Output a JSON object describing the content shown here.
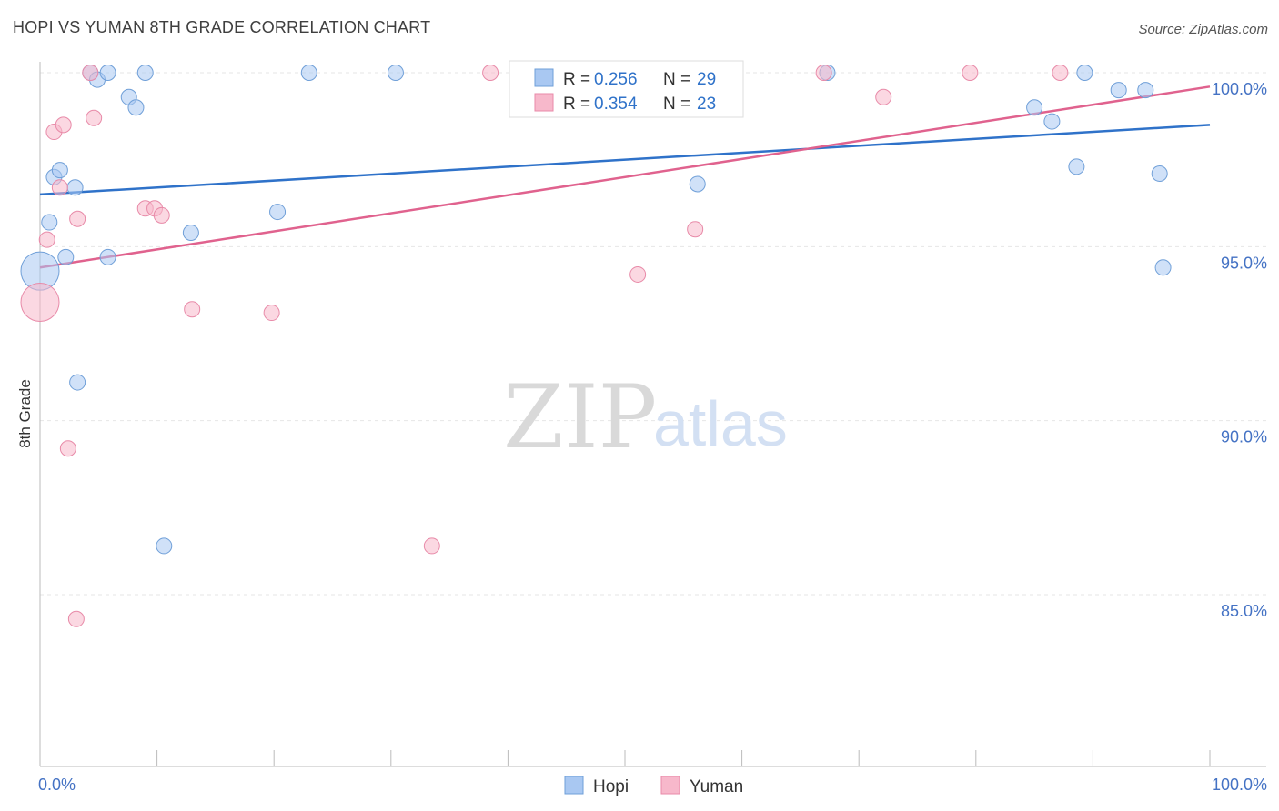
{
  "title": "HOPI VS YUMAN 8TH GRADE CORRELATION CHART",
  "source": "Source: ZipAtlas.com",
  "watermark": {
    "zip": "ZIP",
    "atlas": "atlas"
  },
  "chart_data": {
    "type": "scatter",
    "title": "HOPI VS YUMAN 8TH GRADE CORRELATION CHART",
    "xlabel": "",
    "ylabel": "8th Grade",
    "xlim": [
      0,
      100
    ],
    "ylim": [
      80.5,
      100.5
    ],
    "x_tick_labels": [
      "0.0%",
      "100.0%"
    ],
    "y_ticks": [
      100,
      95,
      90,
      85
    ],
    "y_tick_labels": [
      "100.0%",
      "95.0%",
      "90.0%",
      "85.0%"
    ],
    "grid": true,
    "legend_position": "top-center",
    "stats_legend": [
      {
        "r_label": "R = ",
        "r_value": "0.256",
        "n_label": "N = ",
        "n_value": "29",
        "color": "#a9c8f2"
      },
      {
        "r_label": "R = ",
        "r_value": "0.354",
        "n_label": "N = ",
        "n_value": "23",
        "color": "#f7b8cb"
      }
    ],
    "series": [
      {
        "name": "Hopi",
        "color": "#a9c8f2",
        "stroke": "#6f9fd8",
        "line_color": "#2f72c9",
        "trend": {
          "x": [
            0,
            100
          ],
          "y": [
            96.5,
            98.5
          ]
        },
        "points": [
          {
            "x": 0.0,
            "y": 94.3,
            "big": true
          },
          {
            "x": 0.8,
            "y": 95.7
          },
          {
            "x": 1.2,
            "y": 97.0
          },
          {
            "x": 1.7,
            "y": 97.2
          },
          {
            "x": 2.2,
            "y": 94.7
          },
          {
            "x": 3.0,
            "y": 96.7
          },
          {
            "x": 3.2,
            "y": 91.1
          },
          {
            "x": 4.3,
            "y": 100.0
          },
          {
            "x": 4.9,
            "y": 99.8
          },
          {
            "x": 5.8,
            "y": 100.0
          },
          {
            "x": 5.8,
            "y": 94.7
          },
          {
            "x": 7.6,
            "y": 99.3
          },
          {
            "x": 8.2,
            "y": 99.0
          },
          {
            "x": 9.0,
            "y": 100.0
          },
          {
            "x": 10.6,
            "y": 86.4
          },
          {
            "x": 12.9,
            "y": 95.4
          },
          {
            "x": 20.3,
            "y": 96.0
          },
          {
            "x": 23.0,
            "y": 100.0
          },
          {
            "x": 30.4,
            "y": 100.0
          },
          {
            "x": 56.2,
            "y": 96.8
          },
          {
            "x": 67.3,
            "y": 100.0
          },
          {
            "x": 85.0,
            "y": 99.0
          },
          {
            "x": 86.5,
            "y": 98.6
          },
          {
            "x": 88.6,
            "y": 97.3
          },
          {
            "x": 89.3,
            "y": 100.0
          },
          {
            "x": 92.2,
            "y": 99.5
          },
          {
            "x": 94.5,
            "y": 99.5
          },
          {
            "x": 95.7,
            "y": 97.1
          },
          {
            "x": 96.0,
            "y": 94.4
          }
        ]
      },
      {
        "name": "Yuman",
        "color": "#f7b8cb",
        "stroke": "#e88aa8",
        "line_color": "#e0628e",
        "trend": {
          "x": [
            0,
            100
          ],
          "y": [
            94.4,
            99.6
          ]
        },
        "points": [
          {
            "x": 0.0,
            "y": 93.4,
            "big": true
          },
          {
            "x": 0.6,
            "y": 95.2
          },
          {
            "x": 1.2,
            "y": 98.3
          },
          {
            "x": 1.7,
            "y": 96.7
          },
          {
            "x": 2.0,
            "y": 98.5
          },
          {
            "x": 2.4,
            "y": 89.2
          },
          {
            "x": 3.1,
            "y": 84.3
          },
          {
            "x": 3.2,
            "y": 95.8
          },
          {
            "x": 4.3,
            "y": 100.0
          },
          {
            "x": 4.6,
            "y": 98.7
          },
          {
            "x": 9.0,
            "y": 96.1
          },
          {
            "x": 9.8,
            "y": 96.1
          },
          {
            "x": 10.4,
            "y": 95.9
          },
          {
            "x": 13.0,
            "y": 93.2
          },
          {
            "x": 19.8,
            "y": 93.1
          },
          {
            "x": 33.5,
            "y": 86.4
          },
          {
            "x": 38.5,
            "y": 100.0
          },
          {
            "x": 51.1,
            "y": 94.2
          },
          {
            "x": 56.0,
            "y": 95.5
          },
          {
            "x": 67.0,
            "y": 100.0
          },
          {
            "x": 72.1,
            "y": 99.3
          },
          {
            "x": 79.5,
            "y": 100.0
          },
          {
            "x": 87.2,
            "y": 100.0
          }
        ]
      }
    ]
  }
}
